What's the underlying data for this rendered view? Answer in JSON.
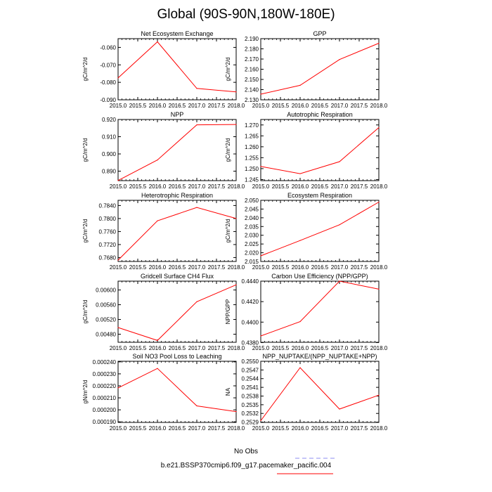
{
  "figure": {
    "title": "Global (90S-90N,180W-180E)"
  },
  "legend": {
    "obs_label": "No Obs",
    "obs_color": "#8c8cf0",
    "case_label": "b.e21.BSSP370cmip6.f09_g17.pacemaker_pacific.004",
    "case_color": "#ff0000"
  },
  "line_color": "#ff0000",
  "chart_data": [
    {
      "type": "line",
      "title": "Net Ecosystem Exchange",
      "ylabel": "gC/m^2/d",
      "xlabel": "",
      "x": [
        2015.0,
        2016.0,
        2017.0,
        2018.0
      ],
      "values": [
        -0.0775,
        -0.0568,
        -0.0835,
        -0.0855
      ],
      "xlim": [
        2015.0,
        2018.0
      ],
      "ylim": [
        -0.09,
        -0.055
      ],
      "xticks": [
        "2015.0",
        "2015.5",
        "2016.0",
        "2016.5",
        "2017.0",
        "2017.5",
        "2018.0"
      ],
      "yticks": [
        -0.09,
        -0.08,
        -0.07,
        -0.06
      ],
      "yticklabels": [
        "-0.090",
        "-0.080",
        "-0.070",
        "-0.060"
      ]
    },
    {
      "type": "line",
      "title": "GPP",
      "ylabel": "gC/m^2/d",
      "xlabel": "",
      "x": [
        2015.0,
        2016.0,
        2017.0,
        2018.0
      ],
      "values": [
        2.1355,
        2.1442,
        2.1695,
        2.1855
      ],
      "xlim": [
        2015.0,
        2018.0
      ],
      "ylim": [
        2.13,
        2.19
      ],
      "xticks": [
        "2015.0",
        "2015.5",
        "2016.0",
        "2016.5",
        "2017.0",
        "2017.5",
        "2018.0"
      ],
      "yticks": [
        2.13,
        2.14,
        2.15,
        2.16,
        2.17,
        2.18,
        2.19
      ],
      "yticklabels": [
        "2.130",
        "2.140",
        "2.150",
        "2.160",
        "2.170",
        "2.180",
        "2.190"
      ]
    },
    {
      "type": "line",
      "title": "NPP",
      "ylabel": "gC/m^2/d",
      "xlabel": "",
      "x": [
        2015.0,
        2016.0,
        2017.0,
        2018.0
      ],
      "values": [
        0.8846,
        0.8965,
        0.9169,
        0.9171
      ],
      "xlim": [
        2015.0,
        2018.0
      ],
      "ylim": [
        0.8845,
        0.92
      ],
      "xticks": [
        "2015.0",
        "2015.5",
        "2016.0",
        "2016.5",
        "2017.0",
        "2017.5",
        "2018.0"
      ],
      "yticks": [
        0.89,
        0.9,
        0.91,
        0.92
      ],
      "yticklabels": [
        "0.890",
        "0.900",
        "0.910",
        "0.920"
      ]
    },
    {
      "type": "line",
      "title": "Autotrophic Respiration",
      "ylabel": "gC/m^2/d",
      "xlabel": "",
      "x": [
        2015.0,
        2016.0,
        2017.0,
        2018.0
      ],
      "values": [
        1.251,
        1.2477,
        1.2532,
        1.2688
      ],
      "xlim": [
        2015.0,
        2018.0
      ],
      "ylim": [
        1.2445,
        1.2725
      ],
      "xticks": [
        "2015.0",
        "2015.5",
        "2016.0",
        "2016.5",
        "2017.0",
        "2017.5",
        "2018.0"
      ],
      "yticks": [
        1.245,
        1.25,
        1.255,
        1.26,
        1.265,
        1.27
      ],
      "yticklabels": [
        "1.245",
        "1.250",
        "1.255",
        "1.260",
        "1.265",
        "1.270"
      ]
    },
    {
      "type": "line",
      "title": "Heterotrophic Respiration",
      "ylabel": "gC/m^2/d",
      "xlabel": "",
      "x": [
        2015.0,
        2016.0,
        2017.0,
        2018.0
      ],
      "values": [
        0.7672,
        0.7793,
        0.7834,
        0.78
      ],
      "xlim": [
        2015.0,
        2018.0
      ],
      "ylim": [
        0.7668,
        0.7856
      ],
      "xticks": [
        "2015.0",
        "2015.5",
        "2016.0",
        "2016.5",
        "2017.0",
        "2017.5",
        "2018.0"
      ],
      "yticks": [
        0.768,
        0.772,
        0.776,
        0.78,
        0.784
      ],
      "yticklabels": [
        "0.7680",
        "0.7720",
        "0.7760",
        "0.7800",
        "0.7840"
      ]
    },
    {
      "type": "line",
      "title": "Ecosystem Respiration",
      "ylabel": "gC/m^2/d",
      "xlabel": "",
      "x": [
        2015.0,
        2016.0,
        2017.0,
        2018.0
      ],
      "values": [
        2.0182,
        2.027,
        2.036,
        2.049
      ],
      "xlim": [
        2015.0,
        2018.0
      ],
      "ylim": [
        2.015,
        2.05
      ],
      "xticks": [
        "2015.0",
        "2015.5",
        "2016.0",
        "2016.5",
        "2017.0",
        "2017.5",
        "2018.0"
      ],
      "yticks": [
        2.015,
        2.02,
        2.025,
        2.03,
        2.035,
        2.04,
        2.045,
        2.05
      ],
      "yticklabels": [
        "2.015",
        "2.020",
        "2.025",
        "2.030",
        "2.035",
        "2.040",
        "2.045",
        "2.050"
      ]
    },
    {
      "type": "line",
      "title": "Gridcell Surface CH4 Flux",
      "ylabel": "gC/m^2/d",
      "xlabel": "",
      "x": [
        2015.0,
        2016.0,
        2017.0,
        2018.0
      ],
      "values": [
        0.00498,
        0.00463,
        0.00568,
        0.00614
      ],
      "xlim": [
        2015.0,
        2018.0
      ],
      "ylim": [
        0.00458,
        0.00624
      ],
      "xticks": [
        "2015.0",
        "2015.5",
        "2016.0",
        "2016.5",
        "2017.0",
        "2017.5",
        "2018.0"
      ],
      "yticks": [
        0.0048,
        0.0052,
        0.0056,
        0.006
      ],
      "yticklabels": [
        "0.00480",
        "0.00520",
        "0.00560",
        "0.00600"
      ]
    },
    {
      "type": "line",
      "title": "Carbon Use Efficiency (NPP/GPP)",
      "ylabel": "NPP/GPP",
      "xlabel": "",
      "x": [
        2015.0,
        2016.0,
        2017.0,
        2018.0
      ],
      "values": [
        0.43865,
        0.44005,
        0.444,
        0.44322
      ],
      "xlim": [
        2015.0,
        2018.0
      ],
      "ylim": [
        0.43803,
        0.444
      ],
      "xticks": [
        "2015.0",
        "2015.5",
        "2016.0",
        "2016.5",
        "2017.0",
        "2017.5",
        "2018.0"
      ],
      "yticks": [
        0.438,
        0.44,
        0.442,
        0.444
      ],
      "yticklabels": [
        "0.4380",
        "0.4400",
        "0.4420",
        "0.4440"
      ]
    },
    {
      "type": "line",
      "title": "Soil NO3 Pool Loss to Leaching",
      "ylabel": "gN/m^2/d",
      "xlabel": "",
      "x": [
        2015.0,
        2016.0,
        2017.0,
        2018.0
      ],
      "values": [
        0.0002183,
        0.0002345,
        0.0002033,
        0.0001985
      ],
      "xlim": [
        2015.0,
        2018.0
      ],
      "ylim": [
        0.0001895,
        0.0002405
      ],
      "xticks": [
        "2015.0",
        "2015.5",
        "2016.0",
        "2016.5",
        "2017.0",
        "2017.5",
        "2018.0"
      ],
      "yticks": [
        0.00019,
        0.0002,
        0.00021,
        0.00022,
        0.00023,
        0.00024
      ],
      "yticklabels": [
        "0.000190",
        "0.000200",
        "0.000210",
        "0.000220",
        "0.000230",
        "0.000240"
      ]
    },
    {
      "type": "line",
      "title": "NPP_NUPTAKE/(NPP_NUPTAKE+NPP)",
      "ylabel": "NA",
      "xlabel": "",
      "x": [
        2015.0,
        2016.0,
        2017.0,
        2018.0
      ],
      "values": [
        0.25295,
        0.25478,
        0.25335,
        0.25383
      ],
      "xlim": [
        2015.0,
        2018.0
      ],
      "ylim": [
        0.25289,
        0.255
      ],
      "xticks": [
        "2015.0",
        "2015.5",
        "2016.0",
        "2016.5",
        "2017.0",
        "2017.5",
        "2018.0"
      ],
      "yticks": [
        0.2529,
        0.2532,
        0.2535,
        0.2538,
        0.2541,
        0.2544,
        0.2547,
        0.255
      ],
      "yticklabels": [
        "0.2529",
        "0.2532",
        "0.2535",
        "0.2538",
        "0.2541",
        "0.2544",
        "0.2547",
        "0.2550"
      ]
    }
  ]
}
